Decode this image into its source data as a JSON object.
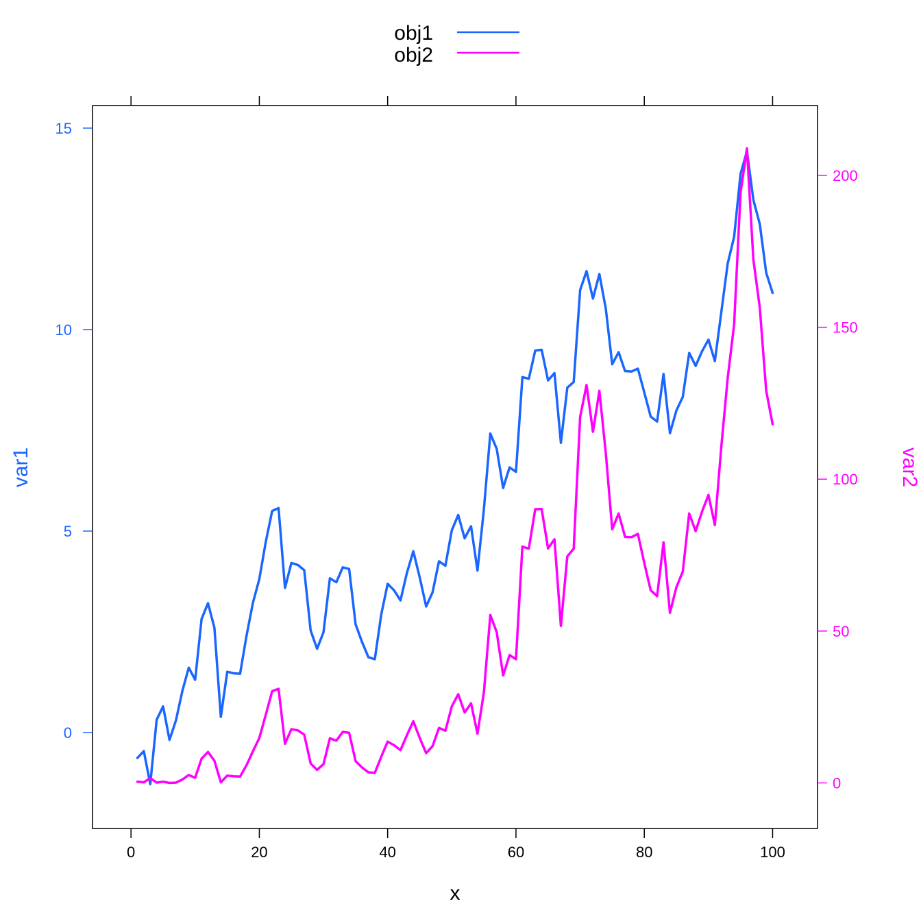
{
  "chart_data": {
    "type": "line",
    "title": "",
    "xlabel": "x",
    "ylabel_left": "var1",
    "ylabel_right": "var2",
    "xlim": [
      -6,
      107
    ],
    "ylim_left": [
      -2.38,
      15.56
    ],
    "ylim_right": [
      -15,
      223
    ],
    "x_ticks": [
      0,
      20,
      40,
      60,
      80,
      100
    ],
    "y_ticks_left": [
      0,
      5,
      10,
      15
    ],
    "y_ticks_right": [
      0,
      50,
      100,
      150,
      200
    ],
    "legend_position": "top-center",
    "colors": {
      "left_axis": "#1a66ff",
      "right_axis": "#ff00ff"
    },
    "x": [
      1,
      2,
      3,
      4,
      5,
      6,
      7,
      8,
      9,
      10,
      11,
      12,
      13,
      14,
      15,
      16,
      17,
      18,
      19,
      20,
      21,
      22,
      23,
      24,
      25,
      26,
      27,
      28,
      29,
      30,
      31,
      32,
      33,
      34,
      35,
      36,
      37,
      38,
      39,
      40,
      41,
      42,
      43,
      44,
      45,
      46,
      47,
      48,
      49,
      50,
      51,
      52,
      53,
      54,
      55,
      56,
      57,
      58,
      59,
      60,
      61,
      62,
      63,
      64,
      65,
      66,
      67,
      68,
      69,
      70,
      71,
      72,
      73,
      74,
      75,
      76,
      77,
      78,
      79,
      80,
      81,
      82,
      83,
      84,
      85,
      86,
      87,
      88,
      89,
      90,
      91,
      92,
      93,
      94,
      95,
      96,
      97,
      98,
      99,
      100
    ],
    "series": [
      {
        "name": "obj1",
        "axis": "left",
        "color": "#1a66ff",
        "values": [
          -0.63,
          -0.46,
          -1.28,
          0.32,
          0.65,
          -0.18,
          0.3,
          1.03,
          1.61,
          1.31,
          2.82,
          3.21,
          2.6,
          0.39,
          1.51,
          1.47,
          1.46,
          2.4,
          3.22,
          3.81,
          4.73,
          5.5,
          5.57,
          3.59,
          4.21,
          4.16,
          4.03,
          2.53,
          2.08,
          2.49,
          3.83,
          3.73,
          4.1,
          4.06,
          2.69,
          2.25,
          1.87,
          1.82,
          2.93,
          3.69,
          3.53,
          3.28,
          3.96,
          4.5,
          3.85,
          3.13,
          3.48,
          4.25,
          4.14,
          5.02,
          5.4,
          4.82,
          5.12,
          4.02,
          5.54,
          7.42,
          7.04,
          6.07,
          6.58,
          6.47,
          8.82,
          8.78,
          9.48,
          9.5,
          8.74,
          8.92,
          7.19,
          8.56,
          8.7,
          10.98,
          11.45,
          10.77,
          11.38,
          10.52,
          9.14,
          9.44,
          8.97,
          8.96,
          9.03,
          8.44,
          7.84,
          7.72,
          8.9,
          7.43,
          7.99,
          8.33,
          9.42,
          9.1,
          9.46,
          9.75,
          9.22,
          10.43,
          11.64,
          12.3,
          13.86,
          14.43,
          13.22,
          12.62,
          11.41,
          10.91
        ]
      },
      {
        "name": "obj2",
        "axis": "right",
        "color": "#ff00ff",
        "values": [
          0.4,
          0.2,
          1.6,
          0.1,
          0.4,
          0.0,
          0.1,
          1.1,
          2.6,
          1.7,
          8.0,
          10.2,
          7.3,
          0.2,
          2.4,
          2.2,
          2.1,
          5.8,
          10.4,
          14.8,
          22.4,
          30.2,
          31.0,
          12.9,
          17.7,
          17.3,
          15.9,
          6.4,
          4.3,
          6.2,
          14.7,
          13.9,
          16.8,
          16.5,
          7.2,
          5.1,
          3.5,
          3.3,
          8.6,
          13.6,
          12.4,
          10.8,
          15.7,
          20.3,
          14.8,
          9.8,
          12.1,
          18.1,
          17.2,
          25.2,
          29.2,
          23.2,
          26.2,
          16.2,
          29.8,
          55.3,
          49.6,
          35.4,
          42.1,
          40.7,
          77.8,
          77.1,
          90.1,
          90.2,
          77.2,
          80.2,
          51.7,
          74.6,
          77.1,
          120.5,
          131.0,
          115.6,
          129.1,
          108.6,
          83.5,
          88.7,
          81.0,
          80.9,
          82.0,
          72.4,
          63.4,
          61.5,
          79.2,
          56.0,
          64.4,
          69.6,
          88.7,
          82.9,
          89.3,
          94.8,
          84.9,
          110.6,
          133.3,
          150.9,
          194.2,
          208.9,
          172.3,
          156.5,
          129.1,
          118.1
        ]
      }
    ]
  }
}
